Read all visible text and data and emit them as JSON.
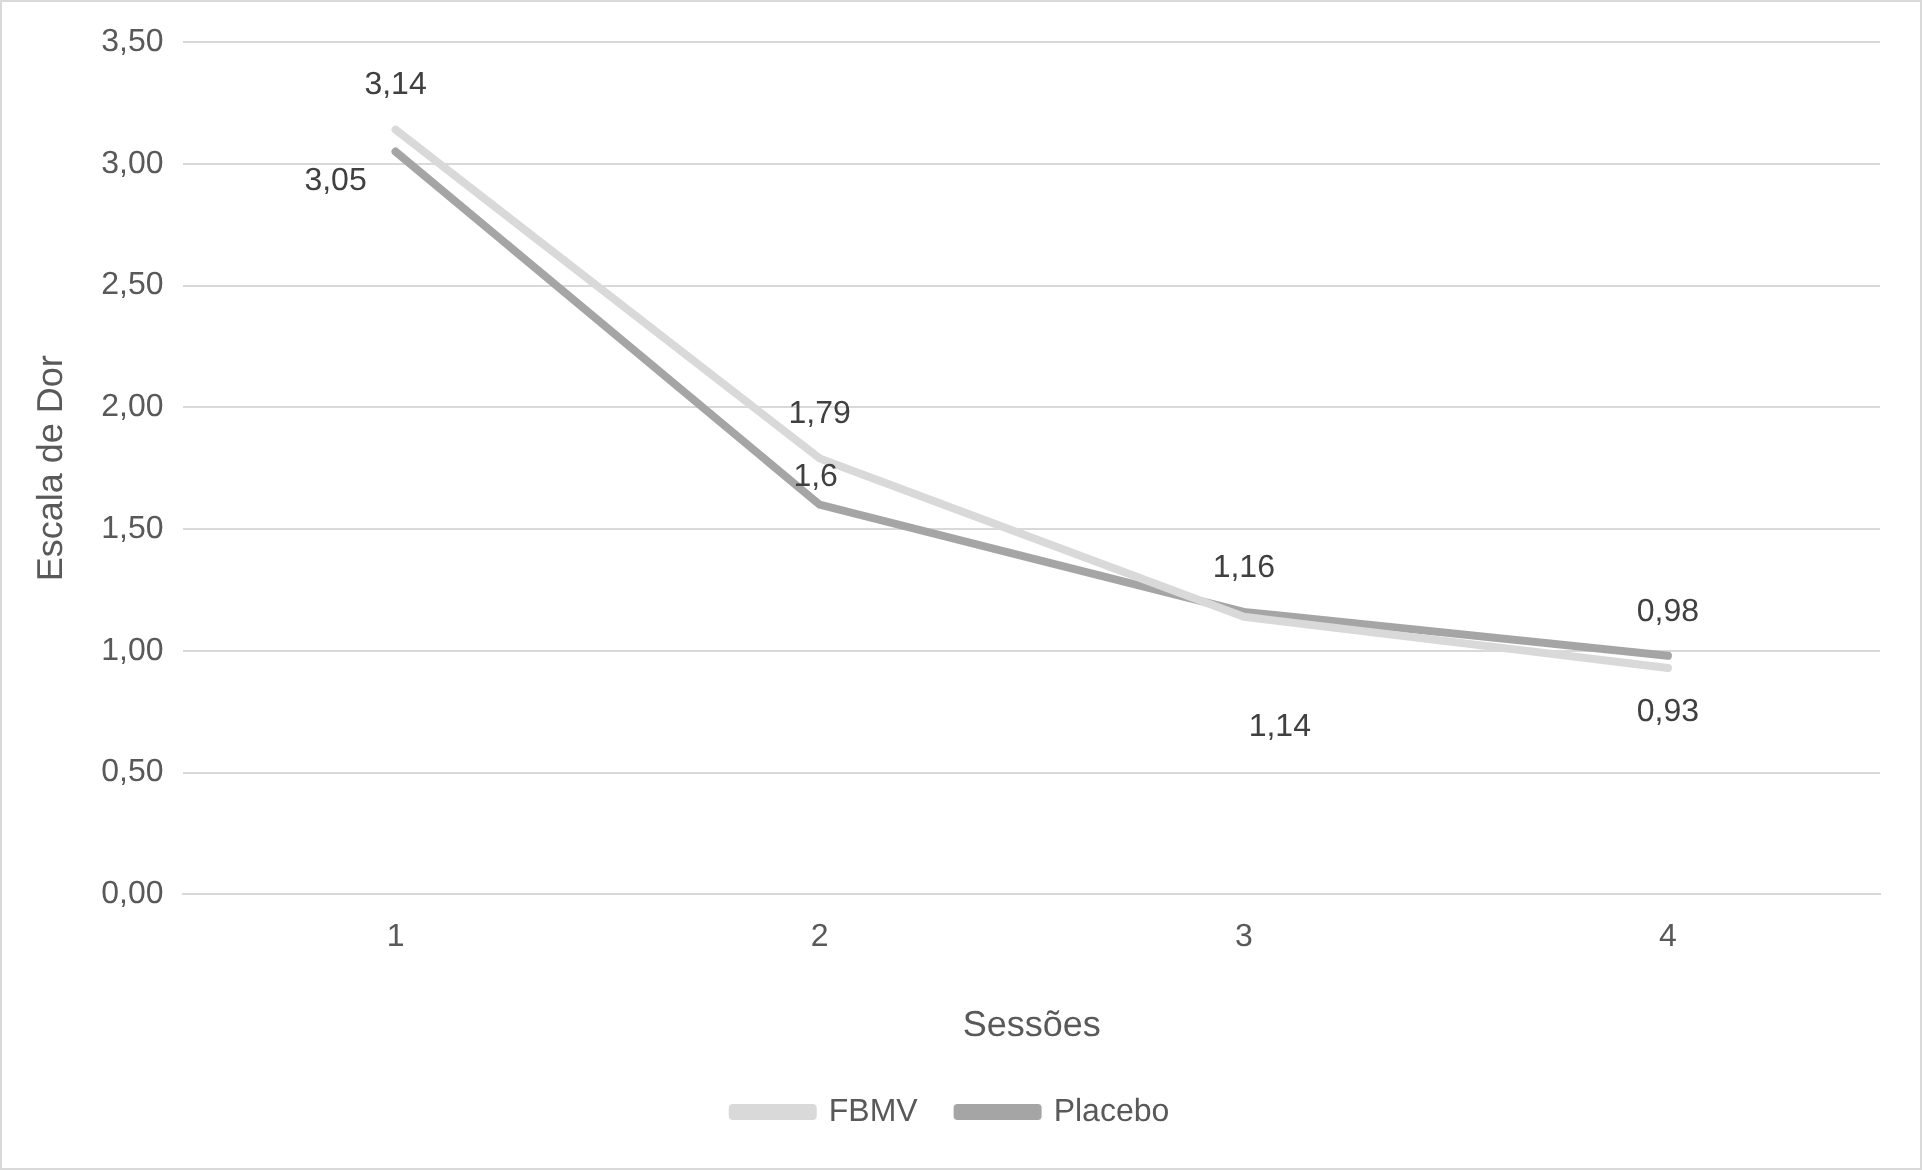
{
  "chart_data": {
    "type": "line",
    "xlabel": "Sessões",
    "ylabel": "Escala de Dor",
    "categories": [
      "1",
      "2",
      "3",
      "4"
    ],
    "series": [
      {
        "name": "FBMV",
        "color": "#d9d9d9",
        "values": [
          3.14,
          1.79,
          1.14,
          0.93
        ],
        "value_labels": [
          "3,14",
          "1,79",
          "1,14",
          "0,93"
        ]
      },
      {
        "name": "Placebo",
        "color": "#a5a5a5",
        "values": [
          3.05,
          1.6,
          1.16,
          0.98
        ],
        "value_labels": [
          "3,05",
          "1,6",
          "1,16",
          "0,98"
        ]
      }
    ],
    "ylim": [
      0,
      3.5
    ],
    "yticks": [
      {
        "value": 0,
        "label": "0,00"
      },
      {
        "value": 0.5,
        "label": "0,50"
      },
      {
        "value": 1,
        "label": "1,00"
      },
      {
        "value": 1.5,
        "label": "1,50"
      },
      {
        "value": 2,
        "label": "2,00"
      },
      {
        "value": 2.5,
        "label": "2,50"
      },
      {
        "value": 3,
        "label": "3,00"
      },
      {
        "value": 3.5,
        "label": "3,50"
      }
    ],
    "grid": "y",
    "legend": "bottom",
    "marker": "none",
    "line_style": "solid"
  }
}
